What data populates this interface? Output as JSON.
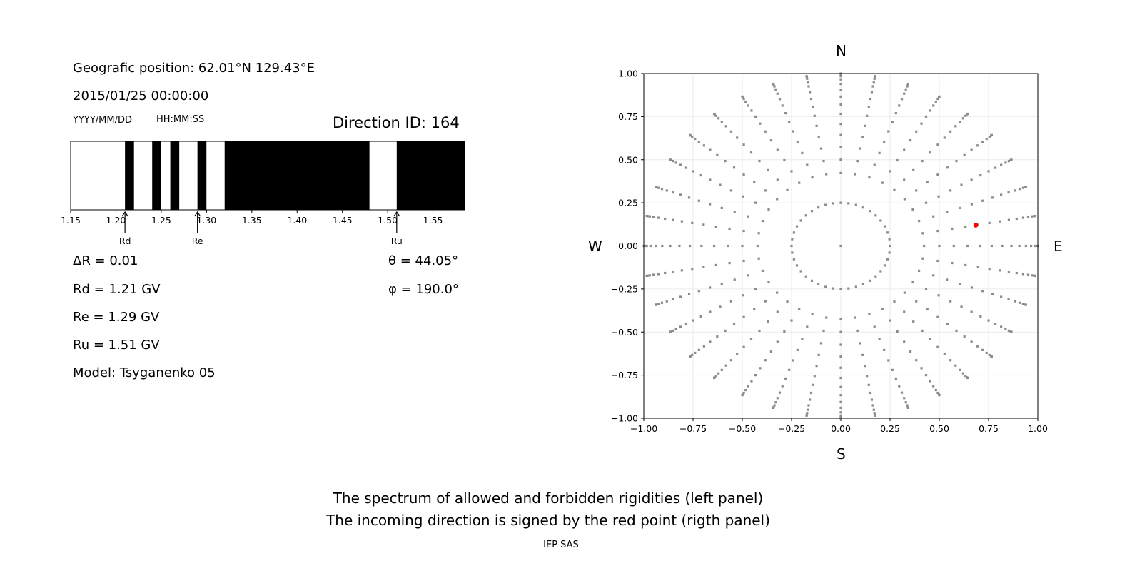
{
  "left_panel": {
    "position": "Geografic position: 62.01°N 129.43°E",
    "datetime": "2015/01/25 00:00:00",
    "date_format": "YYYY/MM/DD",
    "time_format": "HH:MM:SS",
    "direction_id": "Direction ID: 164",
    "delta_r": "ΔR = 0.01",
    "rd": "Rd = 1.21 GV",
    "re": "Re = 1.29 GV",
    "ru": "Ru = 1.51 GV",
    "model": "Model: Tsyganenko 05",
    "theta": "θ = 44.05°",
    "phi": "φ = 190.0°"
  },
  "right_panel": {
    "north": "N",
    "south": "S",
    "west": "W",
    "east": "E"
  },
  "footer": {
    "line1": "The spectrum of allowed and forbidden rigidities (left panel)",
    "line2": "The incoming direction is signed by the red point (rigth panel)",
    "credit": "IEP SAS"
  },
  "chart_data": [
    {
      "type": "bar",
      "description_role": "rigidity spectrum",
      "xlim": [
        1.15,
        1.585
      ],
      "xticks": [
        "1.15",
        "1.20",
        "1.25",
        "1.30",
        "1.35",
        "1.40",
        "1.45",
        "1.50",
        "1.55"
      ],
      "segments": [
        {
          "from": 1.15,
          "to": 1.21,
          "state": "allowed",
          "color": "#ffffff"
        },
        {
          "from": 1.21,
          "to": 1.22,
          "state": "forbidden",
          "color": "#000000"
        },
        {
          "from": 1.22,
          "to": 1.24,
          "state": "allowed",
          "color": "#ffffff"
        },
        {
          "from": 1.24,
          "to": 1.25,
          "state": "forbidden",
          "color": "#000000"
        },
        {
          "from": 1.25,
          "to": 1.26,
          "state": "allowed",
          "color": "#ffffff"
        },
        {
          "from": 1.26,
          "to": 1.27,
          "state": "forbidden",
          "color": "#000000"
        },
        {
          "from": 1.27,
          "to": 1.29,
          "state": "allowed",
          "color": "#ffffff"
        },
        {
          "from": 1.29,
          "to": 1.3,
          "state": "forbidden",
          "color": "#000000"
        },
        {
          "from": 1.3,
          "to": 1.32,
          "state": "allowed",
          "color": "#ffffff"
        },
        {
          "from": 1.32,
          "to": 1.48,
          "state": "forbidden",
          "color": "#000000"
        },
        {
          "from": 1.48,
          "to": 1.51,
          "state": "allowed",
          "color": "#ffffff"
        },
        {
          "from": 1.51,
          "to": 1.585,
          "state": "forbidden",
          "color": "#000000"
        }
      ],
      "markers": [
        {
          "label": "Rd",
          "value": 1.21
        },
        {
          "label": "Re",
          "value": 1.29
        },
        {
          "label": "Ru",
          "value": 1.51
        }
      ]
    },
    {
      "type": "scatter",
      "xlim": [
        -1,
        1
      ],
      "ylim": [
        -1,
        1
      ],
      "xticks": [
        "−1.00",
        "−0.75",
        "−0.50",
        "−0.25",
        "0.00",
        "0.25",
        "0.50",
        "0.75",
        "1.00"
      ],
      "yticks": [
        "−1.00",
        "−0.75",
        "−0.50",
        "−0.25",
        "0.00",
        "0.25",
        "0.50",
        "0.75",
        "1.00"
      ],
      "grid": true,
      "point_color": "#8c8c8c",
      "highlight_color": "#ff0000",
      "direction_grid": {
        "center": true,
        "inner_ring_radius": 0.25,
        "inner_ring_points": 40,
        "zenith_deg": [
          25,
          30,
          35,
          40,
          45,
          50,
          55,
          60,
          65,
          70,
          75,
          80,
          85,
          90
        ],
        "azimuth_step_deg": 10
      },
      "highlight": {
        "x": 0.685,
        "y": 0.12
      }
    }
  ]
}
